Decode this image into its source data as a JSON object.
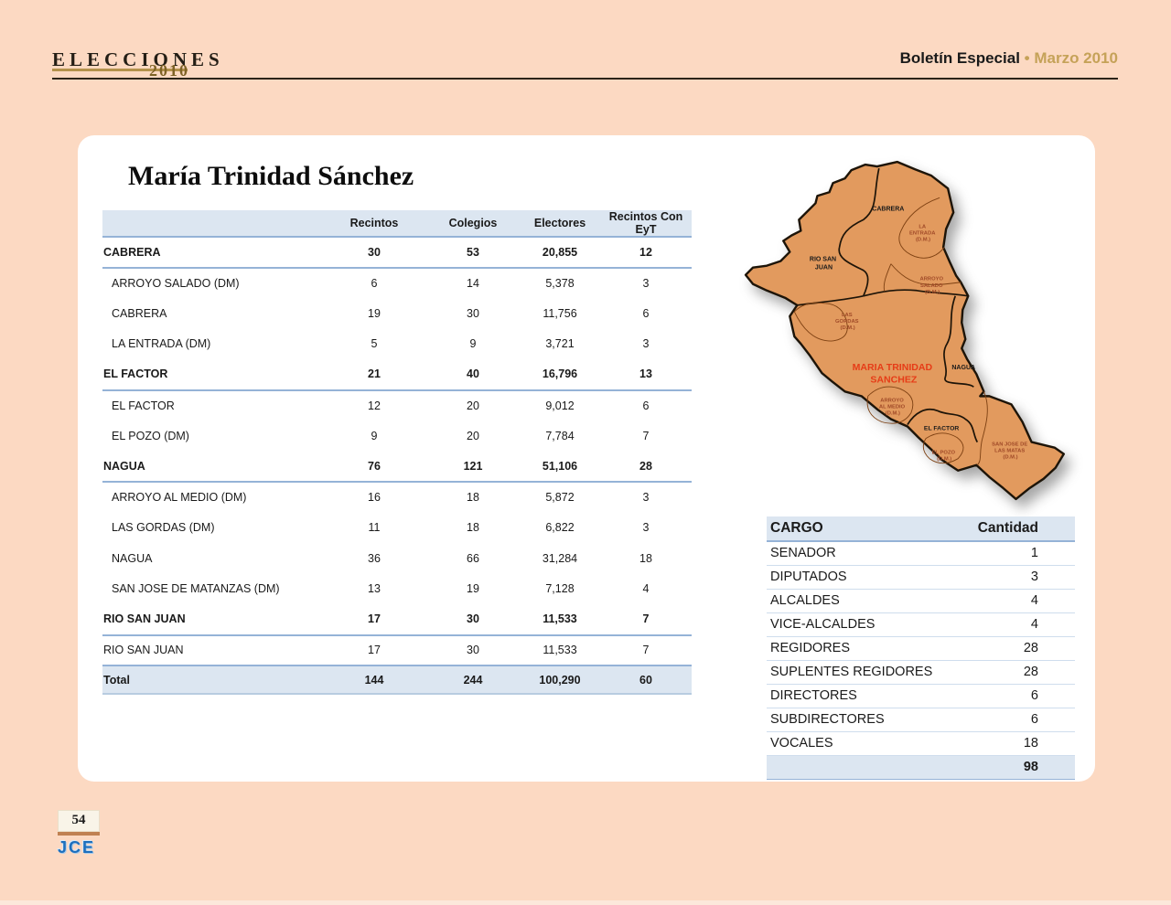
{
  "header": {
    "logo_line1": "ELECCIONES",
    "logo_line2": "2010",
    "right_bold": "Boletín Especial",
    "right_accent": "• Marzo 2010"
  },
  "page": {
    "title": "María Trinidad Sánchez"
  },
  "main_table": {
    "columns": {
      "name": "",
      "recintos": "Recintos",
      "colegios": "Colegios",
      "electores": "Electores",
      "eyt": "Recintos Con EyT"
    },
    "rows": [
      {
        "type": "group",
        "name": "CABRERA",
        "recintos": "30",
        "colegios": "53",
        "electores": "20,855",
        "eyt": "12"
      },
      {
        "type": "sub",
        "name": "ARROYO SALADO (DM)",
        "recintos": "6",
        "colegios": "14",
        "electores": "5,378",
        "eyt": "3"
      },
      {
        "type": "sub",
        "name": "CABRERA",
        "recintos": "19",
        "colegios": "30",
        "electores": "11,756",
        "eyt": "6"
      },
      {
        "type": "sub",
        "name": "LA ENTRADA (DM)",
        "recintos": "5",
        "colegios": "9",
        "electores": "3,721",
        "eyt": "3"
      },
      {
        "type": "group",
        "name": "EL FACTOR",
        "recintos": "21",
        "colegios": "40",
        "electores": "16,796",
        "eyt": "13"
      },
      {
        "type": "sub",
        "name": "EL FACTOR",
        "recintos": "12",
        "colegios": "20",
        "electores": "9,012",
        "eyt": "6"
      },
      {
        "type": "sub",
        "name": "EL POZO (DM)",
        "recintos": "9",
        "colegios": "20",
        "electores": "7,784",
        "eyt": "7"
      },
      {
        "type": "group",
        "name": "NAGUA",
        "recintos": "76",
        "colegios": "121",
        "electores": "51,106",
        "eyt": "28"
      },
      {
        "type": "sub",
        "name": "ARROYO AL MEDIO (DM)",
        "recintos": "16",
        "colegios": "18",
        "electores": "5,872",
        "eyt": "3"
      },
      {
        "type": "sub",
        "name": "LAS GORDAS (DM)",
        "recintos": "11",
        "colegios": "18",
        "electores": "6,822",
        "eyt": "3"
      },
      {
        "type": "sub",
        "name": "NAGUA",
        "recintos": "36",
        "colegios": "66",
        "electores": "31,284",
        "eyt": "18"
      },
      {
        "type": "sub",
        "name": "SAN JOSE DE MATANZAS (DM)",
        "recintos": "13",
        "colegios": "19",
        "electores": "7,128",
        "eyt": "4"
      },
      {
        "type": "group",
        "name": "RIO SAN JUAN",
        "recintos": "17",
        "colegios": "30",
        "electores": "11,533",
        "eyt": "7"
      },
      {
        "type": "sub-last",
        "name": "RIO SAN JUAN",
        "recintos": "17",
        "colegios": "30",
        "electores": "11,533",
        "eyt": "7"
      },
      {
        "type": "total",
        "name": "Total",
        "recintos": "144",
        "colegios": "244",
        "electores": "100,290",
        "eyt": "60"
      }
    ]
  },
  "cargo_table": {
    "col_cargo": "CARGO",
    "col_cantidad": "Cantidad",
    "rows": [
      {
        "cargo": "SENADOR",
        "cantidad": "1"
      },
      {
        "cargo": "DIPUTADOS",
        "cantidad": "3"
      },
      {
        "cargo": "ALCALDES",
        "cantidad": "4"
      },
      {
        "cargo": "VICE-ALCALDES",
        "cantidad": "4"
      },
      {
        "cargo": "REGIDORES",
        "cantidad": "28"
      },
      {
        "cargo": "SUPLENTES REGIDORES",
        "cantidad": "28"
      },
      {
        "cargo": "DIRECTORES",
        "cantidad": "6"
      },
      {
        "cargo": "SUBDIRECTORES",
        "cantidad": "6"
      },
      {
        "cargo": "VOCALES",
        "cantidad": "18"
      }
    ],
    "total": "98"
  },
  "map_labels": {
    "cabrera": "CABRERA",
    "rio_san_juan_1": "RIO SAN",
    "rio_san_juan_2": "JUAN",
    "la_entrada_1": "LA",
    "la_entrada_2": "ENTRADA",
    "la_entrada_3": "(D.M.)",
    "arroyo_salado_1": "ARROYO",
    "arroyo_salado_2": "SALADO",
    "arroyo_salado_3": "(D.M.)",
    "las_gordas_1": "LAS",
    "las_gordas_2": "GORDAS",
    "las_gordas_3": "(D.M.)",
    "province_1": "MARIA TRINIDAD",
    "province_2": "SANCHEZ",
    "nagua": "NAGUA",
    "arroyo_al_medio_1": "ARROYO",
    "arroyo_al_medio_2": "AL MEDIO",
    "arroyo_al_medio_3": "(D.M.)",
    "el_factor": "EL FACTOR",
    "el_pozo_1": "EL POZO",
    "el_pozo_2": "(D.M.)",
    "san_jose_1": "SAN JOSE DE",
    "san_jose_2": "LAS MATAS",
    "san_jose_3": "(D.M.)"
  },
  "footer": {
    "page_number": "54",
    "logo": "JCE"
  },
  "colors": {
    "background": "#fcd9c2",
    "card": "#ffffff",
    "table_header_blue": "#dce6f1",
    "table_line_blue": "#95b3d7",
    "gold_accent": "#c5a258",
    "logo_gold": "#b4924c",
    "map_orange": "#e29a5e",
    "map_border": "#1d1408",
    "dm_label_brown": "#a04a28",
    "province_label_red": "#e63c17",
    "jce_blue": "#1d6fbd"
  }
}
